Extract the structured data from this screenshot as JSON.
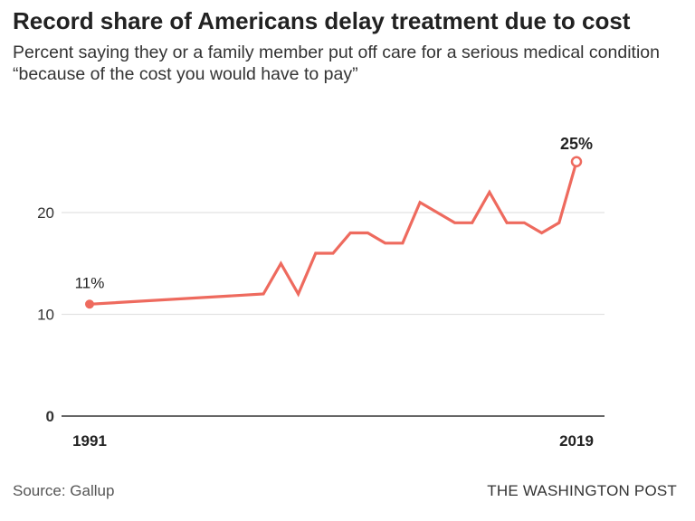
{
  "chart_data": {
    "type": "line",
    "title": "Record share of Americans delay treatment due to cost",
    "subtitle": "Percent saying they or a family member put off care for a serious medical condition “because of the cost you would have to pay”",
    "xlabel": "",
    "ylabel": "",
    "xlim": [
      1991,
      2019
    ],
    "ylim": [
      0,
      25
    ],
    "yticks": [
      0,
      10,
      20
    ],
    "xtick_labels": [
      "1991",
      "2019"
    ],
    "grid": true,
    "color": "#ee6a5e",
    "series": [
      {
        "x": [
          1991,
          2001,
          2002,
          2003,
          2004,
          2005,
          2006,
          2007,
          2008,
          2009,
          2010,
          2011,
          2012,
          2013,
          2014,
          2015,
          2016,
          2017,
          2018,
          2019
        ],
        "values": [
          11,
          12,
          15,
          12,
          16,
          16,
          18,
          18,
          17,
          17,
          21,
          20,
          19,
          19,
          22,
          19,
          19,
          18,
          19,
          25
        ]
      }
    ],
    "annotations": [
      {
        "x": 1991,
        "text": "11%",
        "marker": "filled"
      },
      {
        "x": 2019,
        "text": "25%",
        "marker": "hollow"
      }
    ]
  },
  "footer": {
    "source": "Source: Gallup",
    "publisher": "THE WASHINGTON POST"
  }
}
